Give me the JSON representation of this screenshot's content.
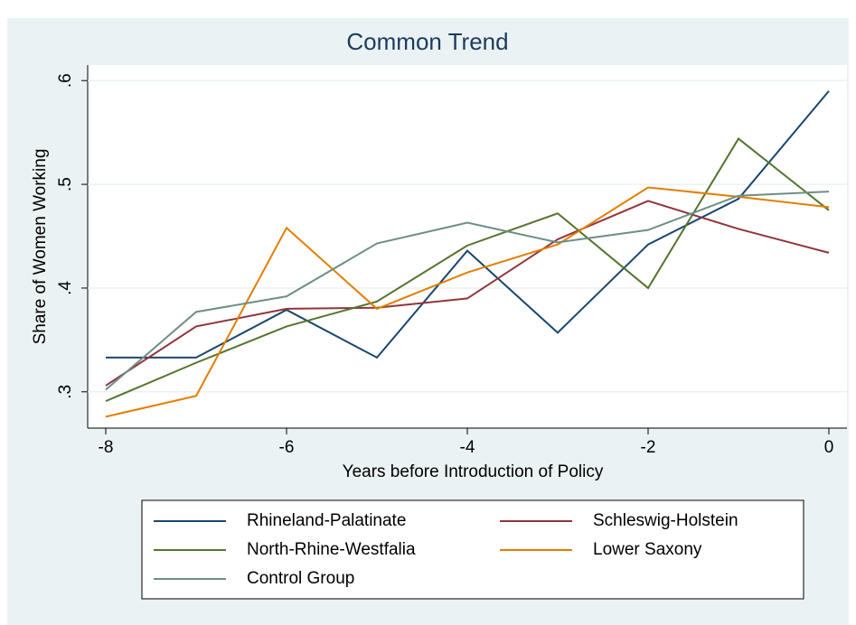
{
  "chart_data": {
    "type": "line",
    "title": "Common Trend",
    "x_label": "Years before Introduction of Policy",
    "y_label": "Share of Women Working",
    "x": [
      -8,
      -7,
      -6,
      -5,
      -4,
      -3,
      -2,
      -1,
      0
    ],
    "xlim": [
      -8.2,
      0.2
    ],
    "xticks": [
      -8,
      -6,
      -4,
      -2,
      0
    ],
    "ylim": [
      0.265,
      0.615
    ],
    "yticks": [
      {
        "value": 0.3,
        "label": ".3"
      },
      {
        "value": 0.4,
        "label": ".4"
      },
      {
        "value": 0.5,
        "label": ".5"
      },
      {
        "value": 0.6,
        "label": ".6"
      }
    ],
    "grid": true,
    "series": [
      {
        "name": "Rhineland-Palatinate",
        "color": "#1a476f",
        "values": [
          0.333,
          0.333,
          0.379,
          0.333,
          0.436,
          0.357,
          0.442,
          0.486,
          0.59
        ]
      },
      {
        "name": "Schleswig-Holstein",
        "color": "#90353b",
        "values": [
          0.306,
          0.363,
          0.38,
          0.381,
          0.39,
          0.447,
          0.484,
          0.457,
          0.434
        ]
      },
      {
        "name": "North-Rhine-Westfalia",
        "color": "#55752f",
        "values": [
          0.291,
          0.328,
          0.363,
          0.387,
          0.441,
          0.472,
          0.4,
          0.544,
          0.475
        ]
      },
      {
        "name": "Lower Saxony",
        "color": "#e37e00",
        "values": [
          0.276,
          0.296,
          0.458,
          0.38,
          0.415,
          0.442,
          0.497,
          0.488,
          0.478
        ]
      },
      {
        "name": "Control Group",
        "color": "#6e8e84",
        "values": [
          0.302,
          0.377,
          0.392,
          0.443,
          0.463,
          0.444,
          0.456,
          0.489,
          0.493
        ]
      }
    ]
  }
}
